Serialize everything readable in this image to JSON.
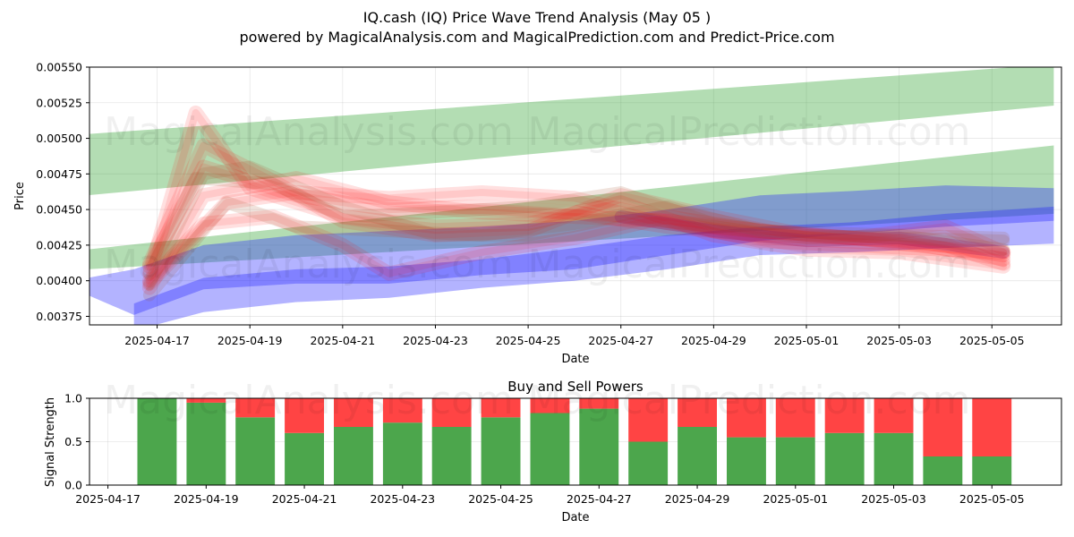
{
  "title_line1": "IQ.cash (IQ) Price Wave Trend Analysis (May 05 )",
  "title_line2": "powered by MagicalAnalysis.com and MagicalPrediction.com and Predict-Price.com",
  "watermarks": [
    "MagicalAnalysis.com",
    "MagicalPrediction.com"
  ],
  "colors": {
    "green": "#2ca02c",
    "blue": "#1f1fff",
    "red": "#ff0000",
    "buy": "#4ca64c",
    "sell": "#ff4444"
  },
  "chart_data": [
    {
      "type": "area",
      "name": "price-wave-chart",
      "xlabel": "Date",
      "ylabel": "Price",
      "xlim": [
        "2025-04-15T13:00",
        "2025-05-06T12:00"
      ],
      "ylim": [
        0.00369,
        0.0055
      ],
      "x_ticks": [
        "2025-04-17",
        "2025-04-19",
        "2025-04-21",
        "2025-04-23",
        "2025-04-25",
        "2025-04-27",
        "2025-04-29",
        "2025-05-01",
        "2025-05-03",
        "2025-05-05"
      ],
      "y_ticks": [
        "0.00375",
        "0.00400",
        "0.00425",
        "0.00450",
        "0.00475",
        "0.00500",
        "0.00525",
        "0.00550"
      ],
      "grid": true,
      "bands": [
        {
          "color": "green",
          "x": [
            "2025-04-15T12:00",
            "2025-05-06T08:00"
          ],
          "upper": [
            0.00503,
            0.00552
          ],
          "lower": [
            0.0046,
            0.00523
          ]
        },
        {
          "color": "green",
          "x": [
            "2025-04-15T12:00",
            "2025-05-06T08:00"
          ],
          "upper": [
            0.00422,
            0.00495
          ],
          "lower": [
            0.00408,
            0.00447
          ]
        },
        {
          "color": "blue",
          "x": [
            "2025-04-15T12:00",
            "2025-04-16T12:00",
            "2025-04-18T00:00",
            "2025-04-20T00:00",
            "2025-04-22T00:00",
            "2025-04-24T00:00",
            "2025-04-26T00:00",
            "2025-04-28T00:00",
            "2025-04-30T00:00",
            "2025-05-02T00:00",
            "2025-05-04T00:00",
            "2025-05-06T08:00"
          ],
          "upper": [
            0.00402,
            0.00408,
            0.00425,
            0.00432,
            0.00435,
            0.00438,
            0.00442,
            0.0045,
            0.0046,
            0.00463,
            0.00467,
            0.00465
          ],
          "lower": [
            0.0039,
            0.00376,
            0.00394,
            0.00398,
            0.00398,
            0.00404,
            0.00408,
            0.00418,
            0.00428,
            0.00433,
            0.00438,
            0.00442
          ]
        },
        {
          "color": "blue",
          "x": [
            "2025-04-16T12:00",
            "2025-04-18T00:00",
            "2025-04-20T00:00",
            "2025-04-22T00:00",
            "2025-04-24T00:00",
            "2025-04-26T00:00",
            "2025-04-28T00:00",
            "2025-04-30T00:00",
            "2025-05-02T00:00",
            "2025-05-04T00:00",
            "2025-05-06T08:00"
          ],
          "upper": [
            0.00384,
            0.00402,
            0.00408,
            0.0041,
            0.00415,
            0.00423,
            0.00432,
            0.00438,
            0.00441,
            0.00447,
            0.00452
          ],
          "lower": [
            0.00365,
            0.00378,
            0.00385,
            0.00388,
            0.00395,
            0.004,
            0.00408,
            0.00418,
            0.0042,
            0.00423,
            0.00426
          ]
        }
      ],
      "red_paths": [
        {
          "x": [
            "2025-04-16T20:00",
            "2025-04-17T20:00",
            "2025-04-19T00:00",
            "2025-04-21T00:00",
            "2025-04-23T00:00",
            "2025-04-25T00:00",
            "2025-04-27T00:00",
            "2025-04-29T00:00",
            "2025-05-01T00:00",
            "2025-05-03T00:00",
            "2025-05-05T06:00"
          ],
          "y": [
            0.00405,
            0.00518,
            0.00465,
            0.00445,
            0.00438,
            0.0044,
            0.00455,
            0.00432,
            0.00422,
            0.0042,
            0.0041
          ]
        },
        {
          "x": [
            "2025-04-16T20:00",
            "2025-04-18T00:00",
            "2025-04-20T00:00",
            "2025-04-22T00:00",
            "2025-04-24T00:00",
            "2025-04-26T00:00",
            "2025-04-28T00:00",
            "2025-04-30T00:00",
            "2025-05-02T00:00",
            "2025-05-05T06:00"
          ],
          "y": [
            0.0041,
            0.0048,
            0.0046,
            0.0045,
            0.00452,
            0.00448,
            0.00438,
            0.00432,
            0.0043,
            0.00418
          ]
        },
        {
          "x": [
            "2025-04-16T20:00",
            "2025-04-18T12:00",
            "2025-04-20T00:00",
            "2025-04-22T00:00",
            "2025-04-24T00:00",
            "2025-04-26T00:00",
            "2025-04-28T00:00",
            "2025-04-30T00:00",
            "2025-05-02T00:00",
            "2025-05-05T06:00"
          ],
          "y": [
            0.00398,
            0.00455,
            0.00462,
            0.00458,
            0.00462,
            0.00458,
            0.00442,
            0.00428,
            0.00425,
            0.0042
          ]
        },
        {
          "x": [
            "2025-04-16T20:00",
            "2025-04-18T00:00",
            "2025-04-19T12:00",
            "2025-04-21T00:00",
            "2025-04-23T00:00",
            "2025-04-25T00:00",
            "2025-04-27T00:00",
            "2025-04-29T00:00",
            "2025-05-01T00:00",
            "2025-05-03T00:00",
            "2025-05-05T06:00"
          ],
          "y": [
            0.00412,
            0.00495,
            0.0047,
            0.00442,
            0.00432,
            0.00435,
            0.0046,
            0.00445,
            0.00432,
            0.00428,
            0.00415
          ]
        },
        {
          "x": [
            "2025-04-16T20:00",
            "2025-04-18T00:00",
            "2025-04-19T12:00",
            "2025-04-21T00:00",
            "2025-04-22T00:00",
            "2025-04-24T00:00",
            "2025-04-26T00:00",
            "2025-04-28T00:00",
            "2025-04-30T00:00",
            "2025-05-02T00:00",
            "2025-05-04T00:00",
            "2025-05-05T06:00"
          ],
          "y": [
            0.004,
            0.0044,
            0.00445,
            0.00425,
            0.00405,
            0.0042,
            0.0043,
            0.00445,
            0.00435,
            0.0043,
            0.00438,
            0.0042
          ]
        },
        {
          "x": [
            "2025-04-16T20:00",
            "2025-04-18T00:00",
            "2025-04-20T00:00",
            "2025-04-22T00:00",
            "2025-04-24T00:00",
            "2025-04-26T00:00",
            "2025-04-28T00:00",
            "2025-04-30T00:00",
            "2025-05-02T00:00",
            "2025-05-04T00:00",
            "2025-05-05T06:00"
          ],
          "y": [
            0.00395,
            0.0046,
            0.00472,
            0.00455,
            0.00448,
            0.00445,
            0.00442,
            0.00435,
            0.0043,
            0.00425,
            0.00412
          ]
        }
      ],
      "brown_paths": [
        {
          "x": [
            "2025-04-16T20:00",
            "2025-04-18T00:00",
            "2025-04-19T00:00",
            "2025-04-21T00:00",
            "2025-04-23T00:00",
            "2025-04-25T00:00",
            "2025-04-27T00:00",
            "2025-04-29T00:00",
            "2025-05-01T00:00",
            "2025-05-03T00:00",
            "2025-05-05T06:00"
          ],
          "y": [
            0.00398,
            0.00475,
            0.0048,
            0.00452,
            0.00432,
            0.00432,
            0.00445,
            0.00438,
            0.0043,
            0.00432,
            0.00422
          ]
        },
        {
          "x": [
            "2025-04-16T20:00",
            "2025-04-17T20:00",
            "2025-04-19T12:00",
            "2025-04-21T00:00",
            "2025-04-23T00:00",
            "2025-04-25T00:00",
            "2025-04-27T00:00",
            "2025-04-29T00:00",
            "2025-05-01T00:00",
            "2025-05-05T06:00"
          ],
          "y": [
            0.00405,
            0.00472,
            0.00468,
            0.00445,
            0.00448,
            0.00452,
            0.00462,
            0.0044,
            0.00432,
            0.00428
          ]
        },
        {
          "x": [
            "2025-04-16T20:00",
            "2025-04-18T12:00",
            "2025-04-20T00:00",
            "2025-04-22T00:00",
            "2025-04-24T00:00",
            "2025-04-26T00:00",
            "2025-04-28T00:00",
            "2025-04-30T00:00",
            "2025-05-05T06:00"
          ],
          "y": [
            0.0039,
            0.00455,
            0.00438,
            0.00435,
            0.00432,
            0.0044,
            0.00452,
            0.00435,
            0.0043
          ]
        }
      ],
      "purple_paths": [
        {
          "x": [
            "2025-04-27T00:00",
            "2025-04-29T00:00",
            "2025-05-01T00:00",
            "2025-05-03T00:00",
            "2025-05-05T06:00"
          ],
          "y": [
            0.00445,
            0.00435,
            0.00428,
            0.0043,
            0.0042
          ]
        }
      ]
    },
    {
      "type": "bar",
      "name": "buy-sell-chart",
      "title": "Buy and Sell Powers",
      "xlabel": "Date",
      "ylabel": "Signal Strength",
      "xlim": [
        "2025-04-16T15:00",
        "2025-05-06T10:00"
      ],
      "ylim": [
        0,
        1
      ],
      "x_ticks": [
        "2025-04-17",
        "2025-04-19",
        "2025-04-21",
        "2025-04-23",
        "2025-04-25",
        "2025-04-27",
        "2025-04-29",
        "2025-05-01",
        "2025-05-03",
        "2025-05-05"
      ],
      "y_ticks": [
        "0.0",
        "0.5",
        "1.0"
      ],
      "categories": [
        "2025-04-18",
        "2025-04-19",
        "2025-04-20",
        "2025-04-21",
        "2025-04-22",
        "2025-04-23",
        "2025-04-24",
        "2025-04-25",
        "2025-04-26",
        "2025-04-27",
        "2025-04-28",
        "2025-04-29",
        "2025-04-30",
        "2025-05-01",
        "2025-05-02",
        "2025-05-03",
        "2025-05-04",
        "2025-05-05"
      ],
      "series": [
        {
          "name": "Buy",
          "values": [
            1.0,
            0.95,
            0.78,
            0.6,
            0.67,
            0.72,
            0.67,
            0.78,
            0.83,
            0.88,
            0.5,
            0.67,
            0.55,
            0.55,
            0.6,
            0.6,
            0.33,
            0.33
          ]
        },
        {
          "name": "Sell",
          "values": [
            0.0,
            0.05,
            0.22,
            0.4,
            0.33,
            0.28,
            0.33,
            0.22,
            0.17,
            0.12,
            0.5,
            0.33,
            0.45,
            0.45,
            0.4,
            0.4,
            0.67,
            0.67
          ]
        }
      ]
    }
  ]
}
